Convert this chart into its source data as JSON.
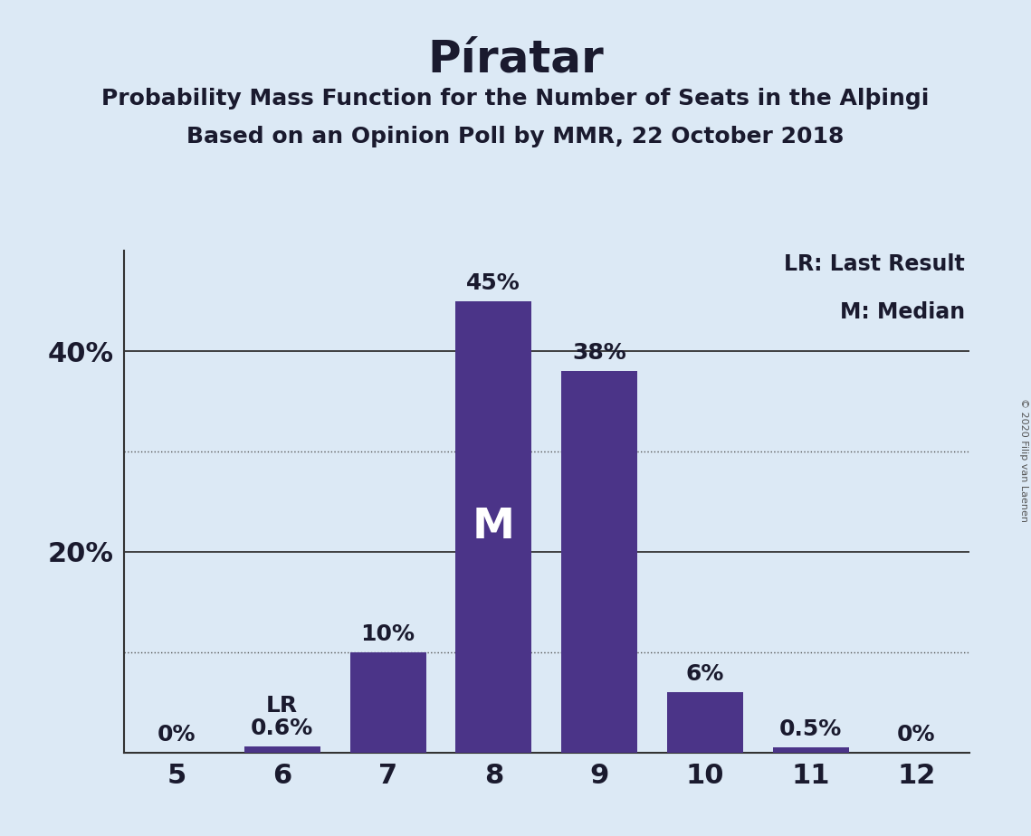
{
  "title": "Píratar",
  "subtitle1": "Probability Mass Function for the Number of Seats in the Alþingi",
  "subtitle2": "Based on an Opinion Poll by MMR, 22 October 2018",
  "copyright": "© 2020 Filip van Laenen",
  "seats": [
    5,
    6,
    7,
    8,
    9,
    10,
    11,
    12
  ],
  "probabilities": [
    0.0,
    0.6,
    10.0,
    45.0,
    38.0,
    6.0,
    0.5,
    0.0
  ],
  "bar_color": "#4b3488",
  "median_seat": 8,
  "lr_seat": 6,
  "background_color": "#dce9f5",
  "title_fontsize": 36,
  "subtitle_fontsize": 18,
  "label_fontsize": 18,
  "tick_fontsize": 22,
  "median_label": "M",
  "lr_label": "LR",
  "legend_line1": "LR: Last Result",
  "legend_line2": "M: Median",
  "ylim": [
    0,
    50
  ],
  "bar_width": 0.72,
  "solid_lines": [
    20,
    40
  ],
  "dotted_lines": [
    10,
    30
  ],
  "ytick_positions": [
    20,
    40
  ],
  "ytick_labels": [
    "20%",
    "40%"
  ]
}
